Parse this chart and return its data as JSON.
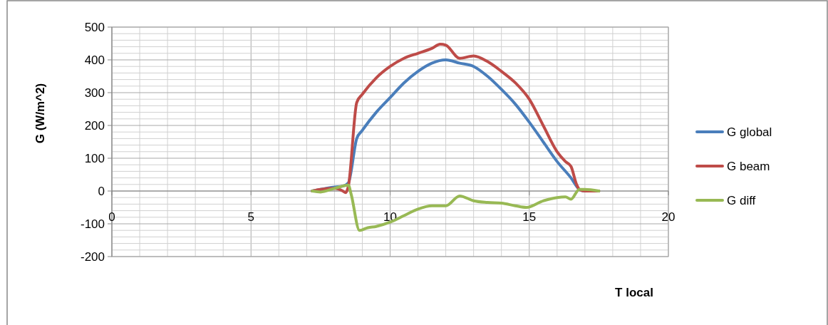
{
  "chart_data": {
    "type": "line",
    "xlabel": "T local",
    "ylabel": "G (W/m^2)",
    "xlim": [
      0,
      20
    ],
    "ylim": [
      -200,
      500
    ],
    "xticks": [
      0,
      {
        "value": 1,
        "label": null
      },
      {
        "value": 2,
        "label": null
      },
      {
        "value": 3,
        "label": null
      },
      {
        "value": 4,
        "label": null
      },
      5,
      {
        "value": 6,
        "label": null
      },
      {
        "value": 7,
        "label": null
      },
      {
        "value": 8,
        "label": null
      },
      {
        "value": 9,
        "label": null
      },
      10,
      {
        "value": 11,
        "label": null
      },
      {
        "value": 12,
        "label": null
      },
      {
        "value": 13,
        "label": null
      },
      {
        "value": 14,
        "label": null
      },
      15,
      {
        "value": 16,
        "label": null
      },
      {
        "value": 17,
        "label": null
      },
      {
        "value": 18,
        "label": null
      },
      {
        "value": 19,
        "label": null
      },
      20
    ],
    "yticks": [
      -200,
      {
        "value": -180,
        "label": null
      },
      {
        "value": -160,
        "label": null
      },
      {
        "value": -140,
        "label": null
      },
      {
        "value": -120,
        "label": null
      },
      -100,
      {
        "value": -80,
        "label": null
      },
      {
        "value": -60,
        "label": null
      },
      {
        "value": -40,
        "label": null
      },
      {
        "value": -20,
        "label": null
      },
      0,
      {
        "value": 20,
        "label": null
      },
      {
        "value": 40,
        "label": null
      },
      {
        "value": 60,
        "label": null
      },
      {
        "value": 80,
        "label": null
      },
      100,
      {
        "value": 120,
        "label": null
      },
      {
        "value": 140,
        "label": null
      },
      {
        "value": 160,
        "label": null
      },
      {
        "value": 180,
        "label": null
      },
      200,
      {
        "value": 220,
        "label": null
      },
      {
        "value": 240,
        "label": null
      },
      {
        "value": 260,
        "label": null
      },
      {
        "value": 280,
        "label": null
      },
      300,
      {
        "value": 320,
        "label": null
      },
      {
        "value": 340,
        "label": null
      },
      {
        "value": 360,
        "label": null
      },
      {
        "value": 380,
        "label": null
      },
      400,
      {
        "value": 420,
        "label": null
      },
      {
        "value": 440,
        "label": null
      },
      {
        "value": 460,
        "label": null
      },
      {
        "value": 480,
        "label": null
      },
      500
    ],
    "grid": true,
    "legend": "right",
    "marker": "none",
    "line_style": "solid",
    "series": [
      {
        "name": "G global",
        "color": "#4a7ebb",
        "x": [
          7.2,
          7.5,
          8,
          8.3,
          8.5,
          8.8,
          9,
          9.5,
          10,
          10.5,
          11,
          11.5,
          12,
          12.5,
          13,
          13.5,
          14,
          14.5,
          15,
          15.5,
          16,
          16.5,
          16.8,
          17,
          17.5
        ],
        "values": [
          0,
          5,
          12,
          15,
          25,
          160,
          185,
          240,
          285,
          330,
          365,
          390,
          400,
          390,
          380,
          350,
          310,
          265,
          210,
          150,
          90,
          40,
          5,
          0,
          0
        ]
      },
      {
        "name": "G beam",
        "color": "#be4b48",
        "x": [
          7.2,
          7.5,
          8,
          8.3,
          8.4,
          8.5,
          8.8,
          9,
          9.5,
          10,
          10.5,
          11,
          11.5,
          11.8,
          12,
          12.5,
          13,
          13.5,
          14,
          14.5,
          15,
          15.5,
          16,
          16.3,
          16.5,
          16.7,
          16.8,
          17,
          17.5
        ],
        "values": [
          0,
          5,
          8,
          0,
          -5,
          15,
          270,
          295,
          345,
          380,
          405,
          420,
          435,
          448,
          445,
          405,
          412,
          395,
          365,
          330,
          280,
          200,
          120,
          90,
          75,
          20,
          5,
          0,
          0
        ]
      },
      {
        "name": "G diff",
        "color": "#98b954",
        "x": [
          7.2,
          7.5,
          8,
          8.5,
          8.6,
          8.9,
          9.2,
          9.5,
          10,
          10.5,
          11,
          11.5,
          12,
          12.5,
          13,
          13.5,
          14,
          14.5,
          14.9,
          15.5,
          16,
          16.3,
          16.5,
          16.8,
          17,
          17.5
        ],
        "values": [
          0,
          -3,
          8,
          18,
          -10,
          -120,
          -112,
          -108,
          -95,
          -75,
          -55,
          -45,
          -45,
          -15,
          -30,
          -35,
          -37,
          -45,
          -50,
          -30,
          -20,
          -18,
          -25,
          5,
          5,
          0
        ]
      }
    ]
  }
}
